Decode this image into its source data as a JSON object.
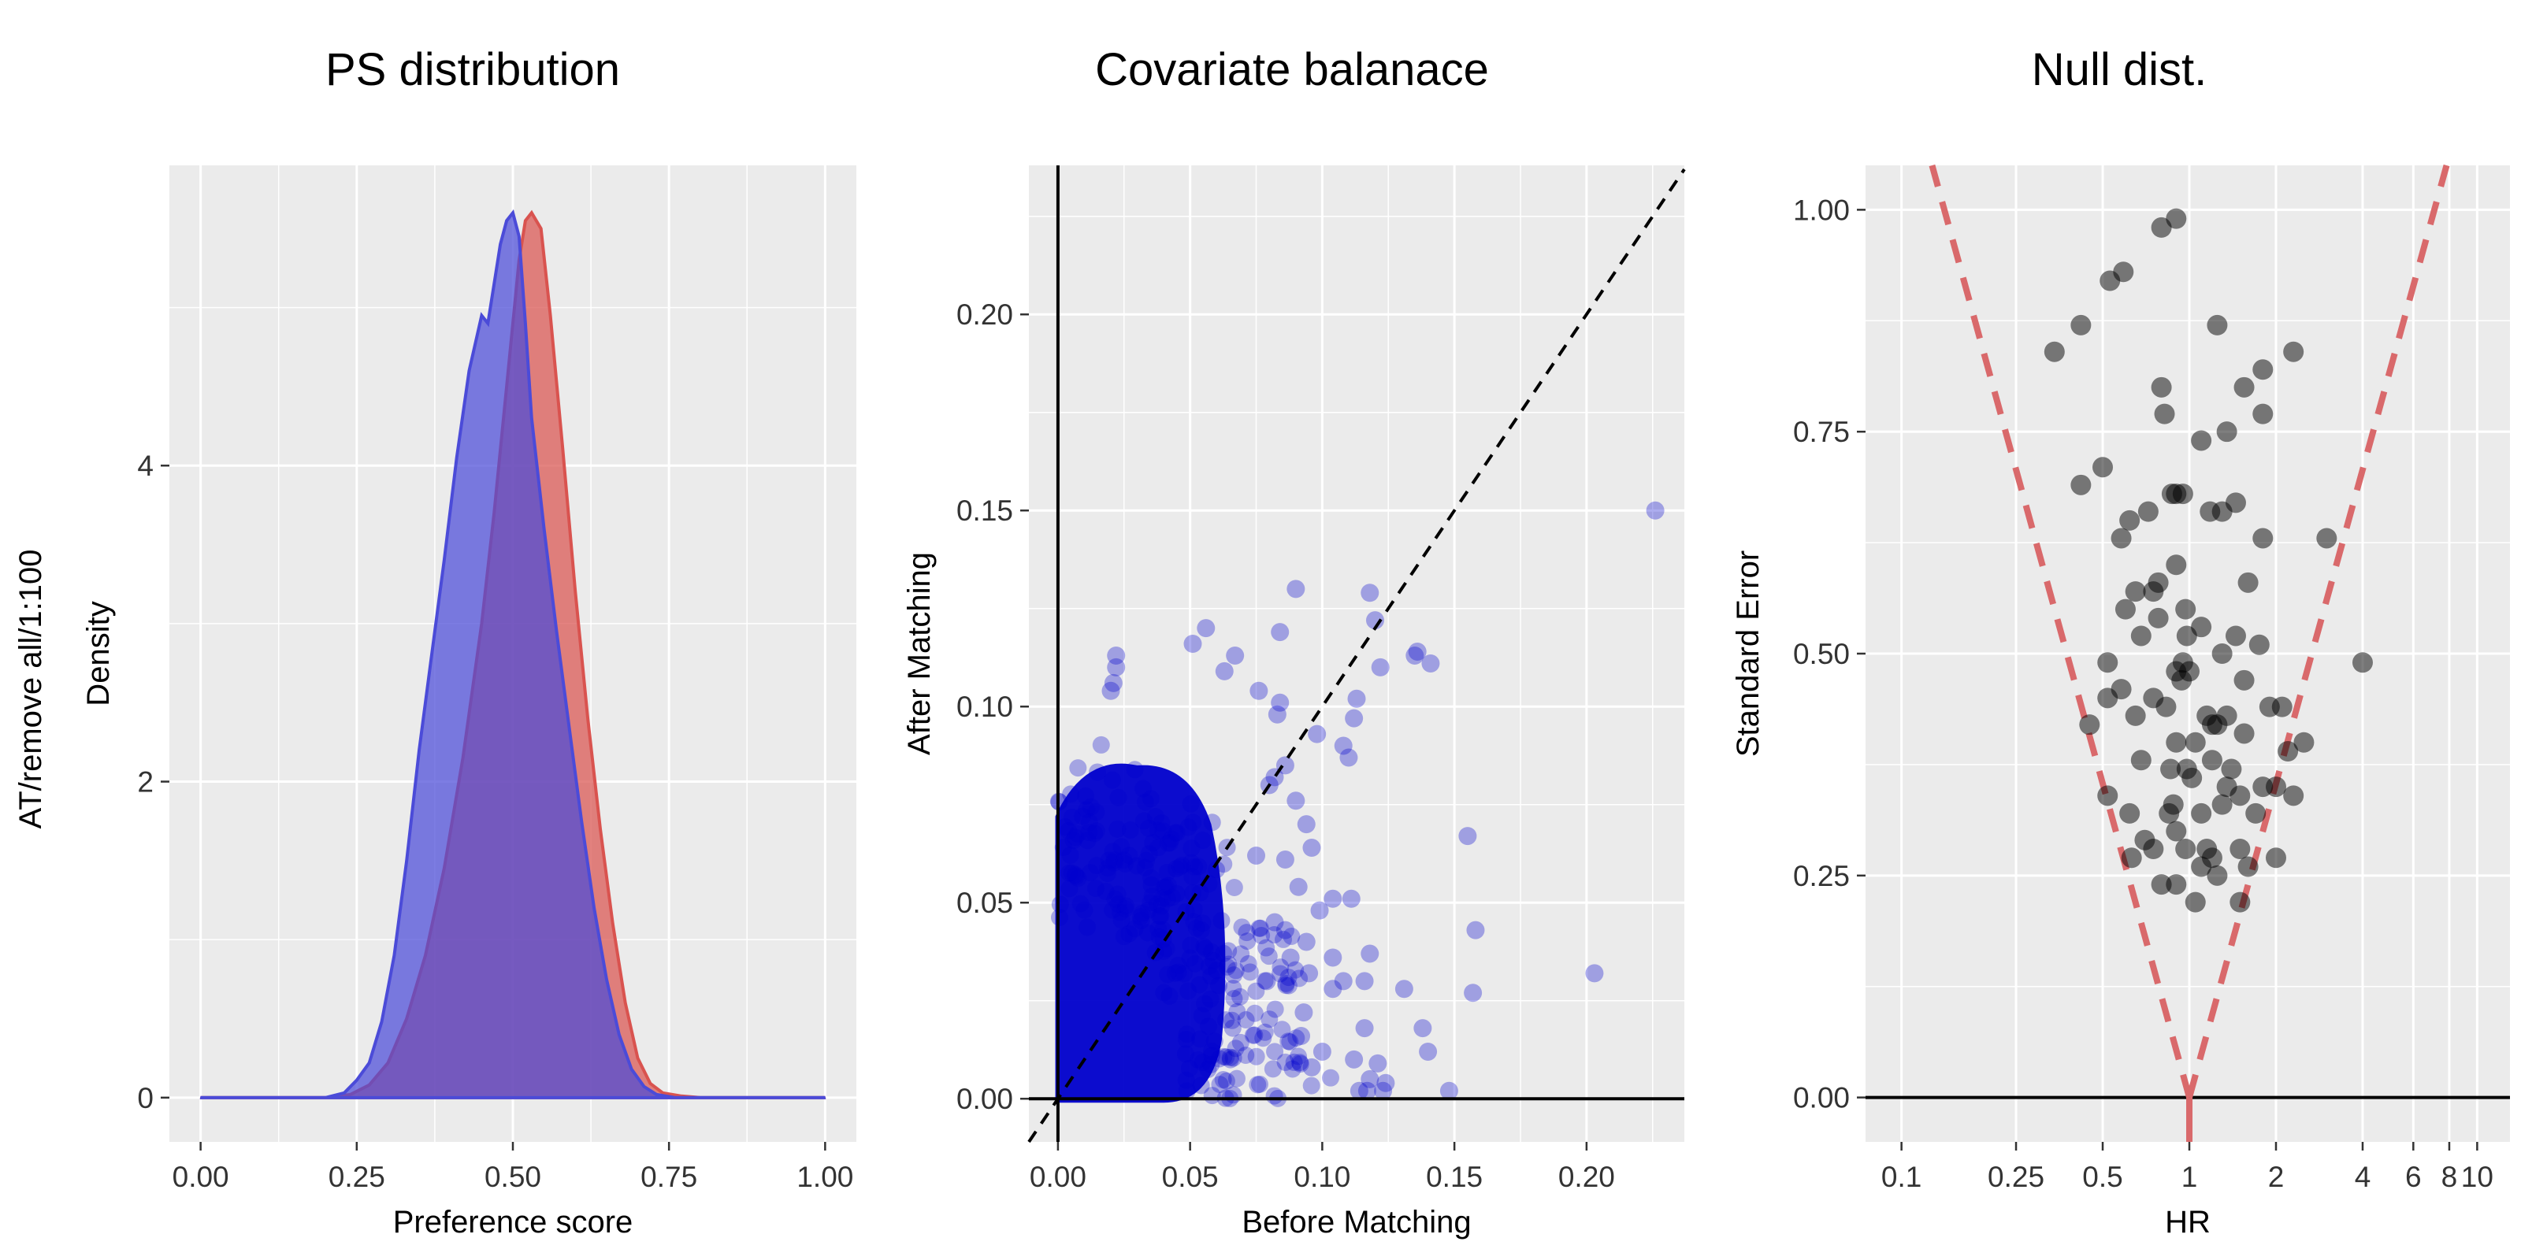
{
  "figure": {
    "side_label": "AT/remove all/1:100"
  },
  "chart_data": [
    {
      "type": "area",
      "title": "PS distribution",
      "xlabel": "Preference score",
      "ylabel": "Density",
      "xlim": [
        -0.05,
        1.05
      ],
      "ylim": [
        -0.28,
        5.9
      ],
      "xticks": [
        0.0,
        0.25,
        0.5,
        0.75,
        1.0
      ],
      "xtick_labels": [
        "0.00",
        "0.25",
        "0.50",
        "0.75",
        "1.00"
      ],
      "yticks": [
        0,
        2,
        4
      ],
      "ytick_labels": [
        "0",
        "2",
        "4"
      ],
      "grid": true,
      "series": [
        {
          "color": "#D9534F",
          "x": [
            0.0,
            0.2,
            0.24,
            0.27,
            0.3,
            0.33,
            0.36,
            0.39,
            0.42,
            0.45,
            0.47,
            0.49,
            0.51,
            0.52,
            0.53,
            0.545,
            0.56,
            0.58,
            0.6,
            0.62,
            0.64,
            0.66,
            0.68,
            0.7,
            0.72,
            0.74,
            0.77,
            0.8,
            1.0
          ],
          "y": [
            0,
            0,
            0.02,
            0.08,
            0.22,
            0.5,
            0.9,
            1.45,
            2.15,
            3.0,
            3.7,
            4.5,
            5.3,
            5.55,
            5.6,
            5.5,
            4.95,
            4.1,
            3.2,
            2.4,
            1.7,
            1.1,
            0.6,
            0.25,
            0.09,
            0.03,
            0.01,
            0,
            0
          ]
        },
        {
          "color": "#4B4BD8",
          "x": [
            0.0,
            0.2,
            0.23,
            0.25,
            0.27,
            0.29,
            0.31,
            0.33,
            0.35,
            0.37,
            0.39,
            0.41,
            0.43,
            0.45,
            0.46,
            0.47,
            0.48,
            0.49,
            0.5,
            0.51,
            0.52,
            0.53,
            0.55,
            0.57,
            0.59,
            0.61,
            0.63,
            0.65,
            0.67,
            0.69,
            0.71,
            0.73,
            0.76,
            1.0
          ],
          "y": [
            0,
            0,
            0.03,
            0.11,
            0.22,
            0.48,
            0.9,
            1.5,
            2.2,
            2.8,
            3.4,
            4.05,
            4.6,
            4.95,
            4.9,
            5.15,
            5.4,
            5.55,
            5.6,
            5.45,
            4.9,
            4.3,
            3.6,
            2.95,
            2.35,
            1.75,
            1.2,
            0.75,
            0.4,
            0.18,
            0.07,
            0.02,
            0,
            0
          ]
        }
      ]
    },
    {
      "type": "scatter",
      "title": "Covariate balanace",
      "xlabel": "Before Matching",
      "ylabel": "After Matching",
      "xlim": [
        -0.011,
        0.237
      ],
      "ylim": [
        -0.011,
        0.238
      ],
      "xticks": [
        0.0,
        0.05,
        0.1,
        0.15,
        0.2
      ],
      "xtick_labels": [
        "0.00",
        "0.05",
        "0.10",
        "0.15",
        "0.20"
      ],
      "yticks": [
        0.0,
        0.05,
        0.1,
        0.15,
        0.2
      ],
      "ytick_labels": [
        "0.00",
        "0.05",
        "0.10",
        "0.15",
        "0.20"
      ],
      "grid": true,
      "point_color": "#0000CC",
      "reference_line": "y = x",
      "points": [
        [
          0.226,
          0.15
        ],
        [
          0.203,
          0.032
        ],
        [
          0.158,
          0.043
        ],
        [
          0.155,
          0.067
        ],
        [
          0.157,
          0.027
        ],
        [
          0.148,
          0.002
        ],
        [
          0.141,
          0.111
        ],
        [
          0.136,
          0.114
        ],
        [
          0.135,
          0.113
        ],
        [
          0.122,
          0.11
        ],
        [
          0.12,
          0.122
        ],
        [
          0.118,
          0.129
        ],
        [
          0.113,
          0.102
        ],
        [
          0.112,
          0.097
        ],
        [
          0.11,
          0.087
        ],
        [
          0.09,
          0.13
        ],
        [
          0.084,
          0.119
        ],
        [
          0.084,
          0.101
        ],
        [
          0.083,
          0.098
        ],
        [
          0.082,
          0.082
        ],
        [
          0.08,
          0.08
        ],
        [
          0.076,
          0.104
        ],
        [
          0.067,
          0.113
        ],
        [
          0.063,
          0.109
        ],
        [
          0.056,
          0.12
        ],
        [
          0.051,
          0.116
        ],
        [
          0.022,
          0.113
        ],
        [
          0.022,
          0.11
        ],
        [
          0.021,
          0.106
        ],
        [
          0.02,
          0.104
        ],
        [
          0.118,
          0.005
        ],
        [
          0.116,
          0.03
        ],
        [
          0.118,
          0.037
        ],
        [
          0.104,
          0.028
        ],
        [
          0.104,
          0.051
        ],
        [
          0.096,
          0.008
        ],
        [
          0.099,
          0.048
        ],
        [
          0.111,
          0.051
        ],
        [
          0.096,
          0.064
        ],
        [
          0.124,
          0.004
        ],
        [
          0.123,
          0.002
        ],
        [
          0.117,
          0.002
        ],
        [
          0.114,
          0.002
        ],
        [
          0.121,
          0.009
        ],
        [
          0.116,
          0.018
        ],
        [
          0.14,
          0.012
        ],
        [
          0.138,
          0.018
        ],
        [
          0.131,
          0.028
        ],
        [
          0.104,
          0.036
        ],
        [
          0.094,
          0.04
        ],
        [
          0.088,
          0.036
        ],
        [
          0.086,
          0.043
        ],
        [
          0.1,
          0.012
        ],
        [
          0.108,
          0.03
        ],
        [
          0.112,
          0.01
        ],
        [
          0.093,
          0.022
        ],
        [
          0.082,
          0.045
        ],
        [
          0.091,
          0.054
        ],
        [
          0.094,
          0.07
        ],
        [
          0.09,
          0.076
        ],
        [
          0.086,
          0.085
        ],
        [
          0.098,
          0.093
        ],
        [
          0.108,
          0.09
        ],
        [
          0.086,
          0.061
        ],
        [
          0.092,
          0.016
        ],
        [
          0.079,
          0.03
        ],
        [
          0.075,
          0.062
        ],
        [
          0.095,
          0.032
        ]
      ]
    },
    {
      "type": "scatter",
      "title": "Null dist.",
      "xlabel": "HR",
      "ylabel": "Standard Error",
      "xscale": "log",
      "xlim": [
        0.075,
        13
      ],
      "ylim": [
        -0.05,
        1.05
      ],
      "xticks": [
        0.1,
        0.25,
        0.5,
        1,
        2,
        4,
        6,
        8,
        10
      ],
      "xtick_labels": [
        "0.1",
        "0.25",
        "0.5",
        "1",
        "2",
        "4",
        "6",
        "8",
        "10"
      ],
      "yticks": [
        0.0,
        0.25,
        0.5,
        0.75,
        1.0
      ],
      "ytick_labels": [
        "0.00",
        "0.25",
        "0.50",
        "0.75",
        "1.00"
      ],
      "grid": true,
      "point_color": "#000000",
      "funnel_color": "#D9696B",
      "points": [
        [
          0.9,
          0.99
        ],
        [
          0.8,
          0.98
        ],
        [
          0.59,
          0.93
        ],
        [
          0.53,
          0.92
        ],
        [
          0.42,
          0.87
        ],
        [
          0.34,
          0.84
        ],
        [
          1.25,
          0.87
        ],
        [
          2.3,
          0.84
        ],
        [
          1.8,
          0.82
        ],
        [
          1.55,
          0.8
        ],
        [
          0.8,
          0.8
        ],
        [
          1.8,
          0.77
        ],
        [
          0.82,
          0.77
        ],
        [
          1.35,
          0.75
        ],
        [
          1.1,
          0.74
        ],
        [
          0.5,
          0.71
        ],
        [
          0.42,
          0.69
        ],
        [
          0.87,
          0.68
        ],
        [
          0.9,
          0.68
        ],
        [
          0.95,
          0.68
        ],
        [
          1.45,
          0.67
        ],
        [
          1.3,
          0.66
        ],
        [
          1.18,
          0.66
        ],
        [
          0.72,
          0.66
        ],
        [
          0.62,
          0.65
        ],
        [
          0.58,
          0.63
        ],
        [
          1.8,
          0.63
        ],
        [
          3.0,
          0.63
        ],
        [
          0.9,
          0.6
        ],
        [
          0.78,
          0.58
        ],
        [
          0.75,
          0.57
        ],
        [
          0.65,
          0.57
        ],
        [
          1.6,
          0.58
        ],
        [
          0.97,
          0.55
        ],
        [
          0.78,
          0.54
        ],
        [
          0.6,
          0.55
        ],
        [
          1.1,
          0.53
        ],
        [
          0.68,
          0.52
        ],
        [
          0.98,
          0.52
        ],
        [
          1.45,
          0.52
        ],
        [
          1.75,
          0.51
        ],
        [
          1.3,
          0.5
        ],
        [
          0.95,
          0.49
        ],
        [
          0.52,
          0.49
        ],
        [
          4.0,
          0.49
        ],
        [
          0.9,
          0.48
        ],
        [
          1.0,
          0.48
        ],
        [
          0.94,
          0.47
        ],
        [
          1.55,
          0.47
        ],
        [
          0.58,
          0.46
        ],
        [
          0.52,
          0.45
        ],
        [
          0.75,
          0.45
        ],
        [
          1.9,
          0.44
        ],
        [
          0.83,
          0.44
        ],
        [
          2.1,
          0.44
        ],
        [
          0.65,
          0.43
        ],
        [
          1.15,
          0.43
        ],
        [
          1.35,
          0.43
        ],
        [
          0.45,
          0.42
        ],
        [
          1.2,
          0.42
        ],
        [
          1.25,
          0.42
        ],
        [
          1.55,
          0.41
        ],
        [
          0.9,
          0.4
        ],
        [
          1.05,
          0.4
        ],
        [
          2.5,
          0.4
        ],
        [
          2.2,
          0.39
        ],
        [
          1.2,
          0.38
        ],
        [
          0.68,
          0.38
        ],
        [
          0.98,
          0.37
        ],
        [
          0.86,
          0.37
        ],
        [
          1.02,
          0.36
        ],
        [
          1.4,
          0.37
        ],
        [
          1.8,
          0.35
        ],
        [
          1.35,
          0.35
        ],
        [
          1.5,
          0.34
        ],
        [
          0.52,
          0.34
        ],
        [
          0.88,
          0.33
        ],
        [
          2.0,
          0.35
        ],
        [
          2.3,
          0.34
        ],
        [
          1.3,
          0.33
        ],
        [
          0.85,
          0.32
        ],
        [
          0.62,
          0.32
        ],
        [
          1.1,
          0.32
        ],
        [
          1.7,
          0.32
        ],
        [
          0.9,
          0.3
        ],
        [
          0.97,
          0.28
        ],
        [
          0.7,
          0.29
        ],
        [
          0.75,
          0.28
        ],
        [
          1.15,
          0.28
        ],
        [
          1.5,
          0.28
        ],
        [
          0.63,
          0.27
        ],
        [
          1.2,
          0.27
        ],
        [
          1.1,
          0.26
        ],
        [
          1.6,
          0.26
        ],
        [
          2.0,
          0.27
        ],
        [
          1.25,
          0.25
        ],
        [
          0.9,
          0.24
        ],
        [
          0.8,
          0.24
        ],
        [
          1.5,
          0.22
        ],
        [
          1.05,
          0.22
        ]
      ]
    }
  ]
}
